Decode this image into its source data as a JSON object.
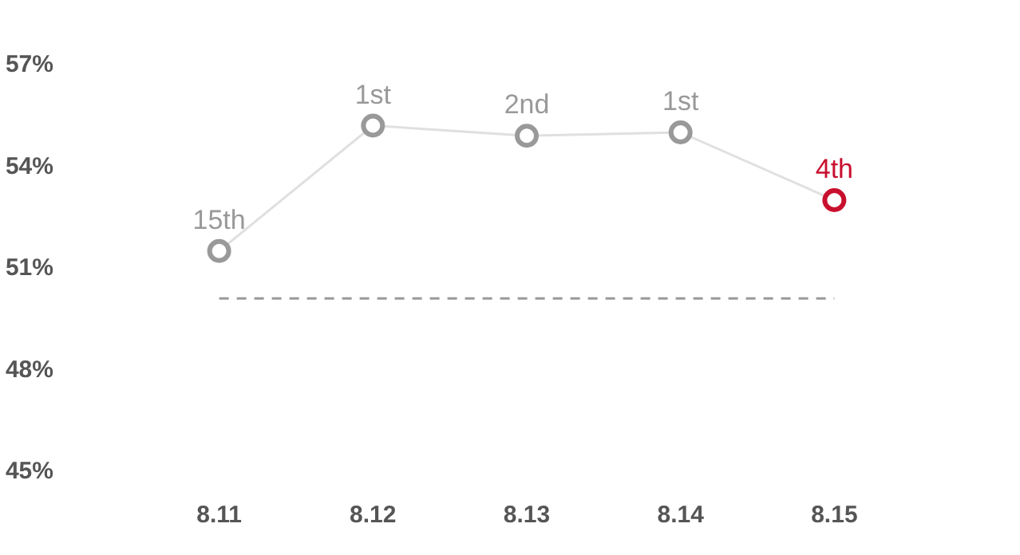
{
  "chart_data": {
    "type": "line",
    "categories": [
      "8.11",
      "8.12",
      "8.13",
      "8.14",
      "8.15"
    ],
    "series": [
      {
        "color": "#e0e0e0",
        "colors": [
          "#999999",
          "#999999",
          "#999999",
          "#999999",
          "#c8102e"
        ],
        "values": [
          51.5,
          55.2,
          54.9,
          55.0,
          53.0
        ]
      }
    ],
    "annotations": [
      {
        "text": "15th",
        "x": "8.11",
        "y": 51.5
      },
      {
        "text": "1st",
        "x": "8.12",
        "y": 55.2
      },
      {
        "text": "2nd",
        "x": "8.13",
        "y": 54.9
      },
      {
        "text": "1st",
        "x": "8.14",
        "y": 55.0
      },
      {
        "text": "4th",
        "x": "8.15",
        "y": 53.0
      }
    ],
    "ylim": [
      45,
      57
    ],
    "yticks": [
      {
        "value": 45,
        "label": "45%"
      },
      {
        "value": 48,
        "label": "48%"
      },
      {
        "value": 51,
        "label": "51%"
      },
      {
        "value": 54,
        "label": "54%"
      },
      {
        "value": 57,
        "label": "57%"
      }
    ],
    "ref_lines": [
      {
        "axis": "y",
        "value": 50.1,
        "color": "#999999",
        "line_style": "dashed"
      }
    ],
    "marker": "circle",
    "line_style": "solid",
    "grid": false
  }
}
